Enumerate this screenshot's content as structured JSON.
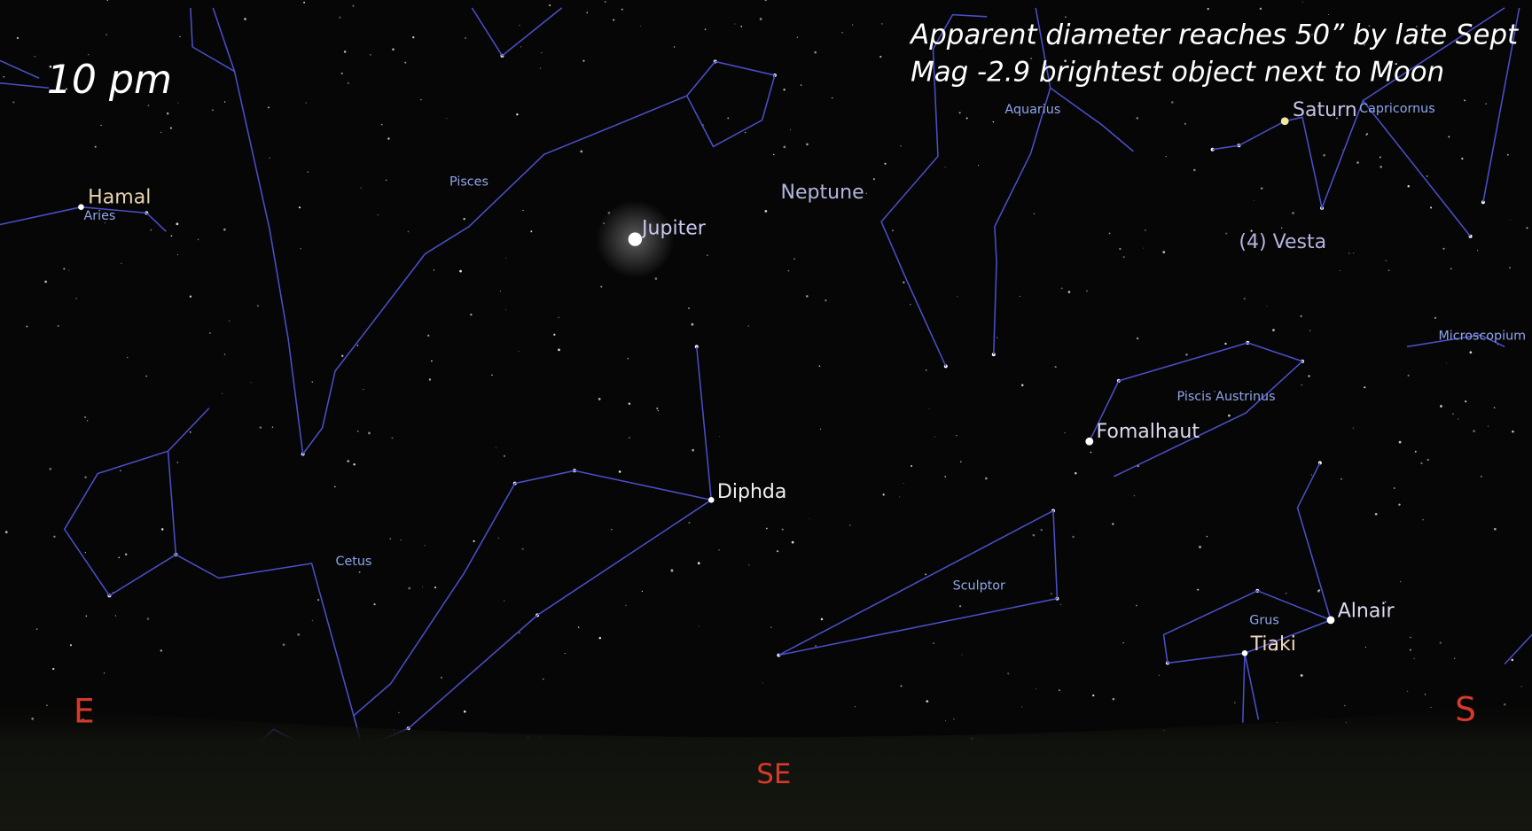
{
  "time_label": "10 pm",
  "annotation": [
    "Apparent diameter reaches 50” by late Sept",
    "Mag -2.9 brightest object next to Moon"
  ],
  "constellations": [
    "Pisces",
    "Aries",
    "Aquarius",
    "Capricornus",
    "Microscopium",
    "Piscis Austrinus",
    "Cetus",
    "Sculptor",
    "Grus"
  ],
  "objects": [
    "Hamal",
    "Jupiter",
    "Neptune",
    "Saturn",
    "(4) Vesta",
    "Fomalhaut",
    "Diphda",
    "Alnair",
    "Tiaki"
  ],
  "directions": [
    "E",
    "SE",
    "S"
  ]
}
